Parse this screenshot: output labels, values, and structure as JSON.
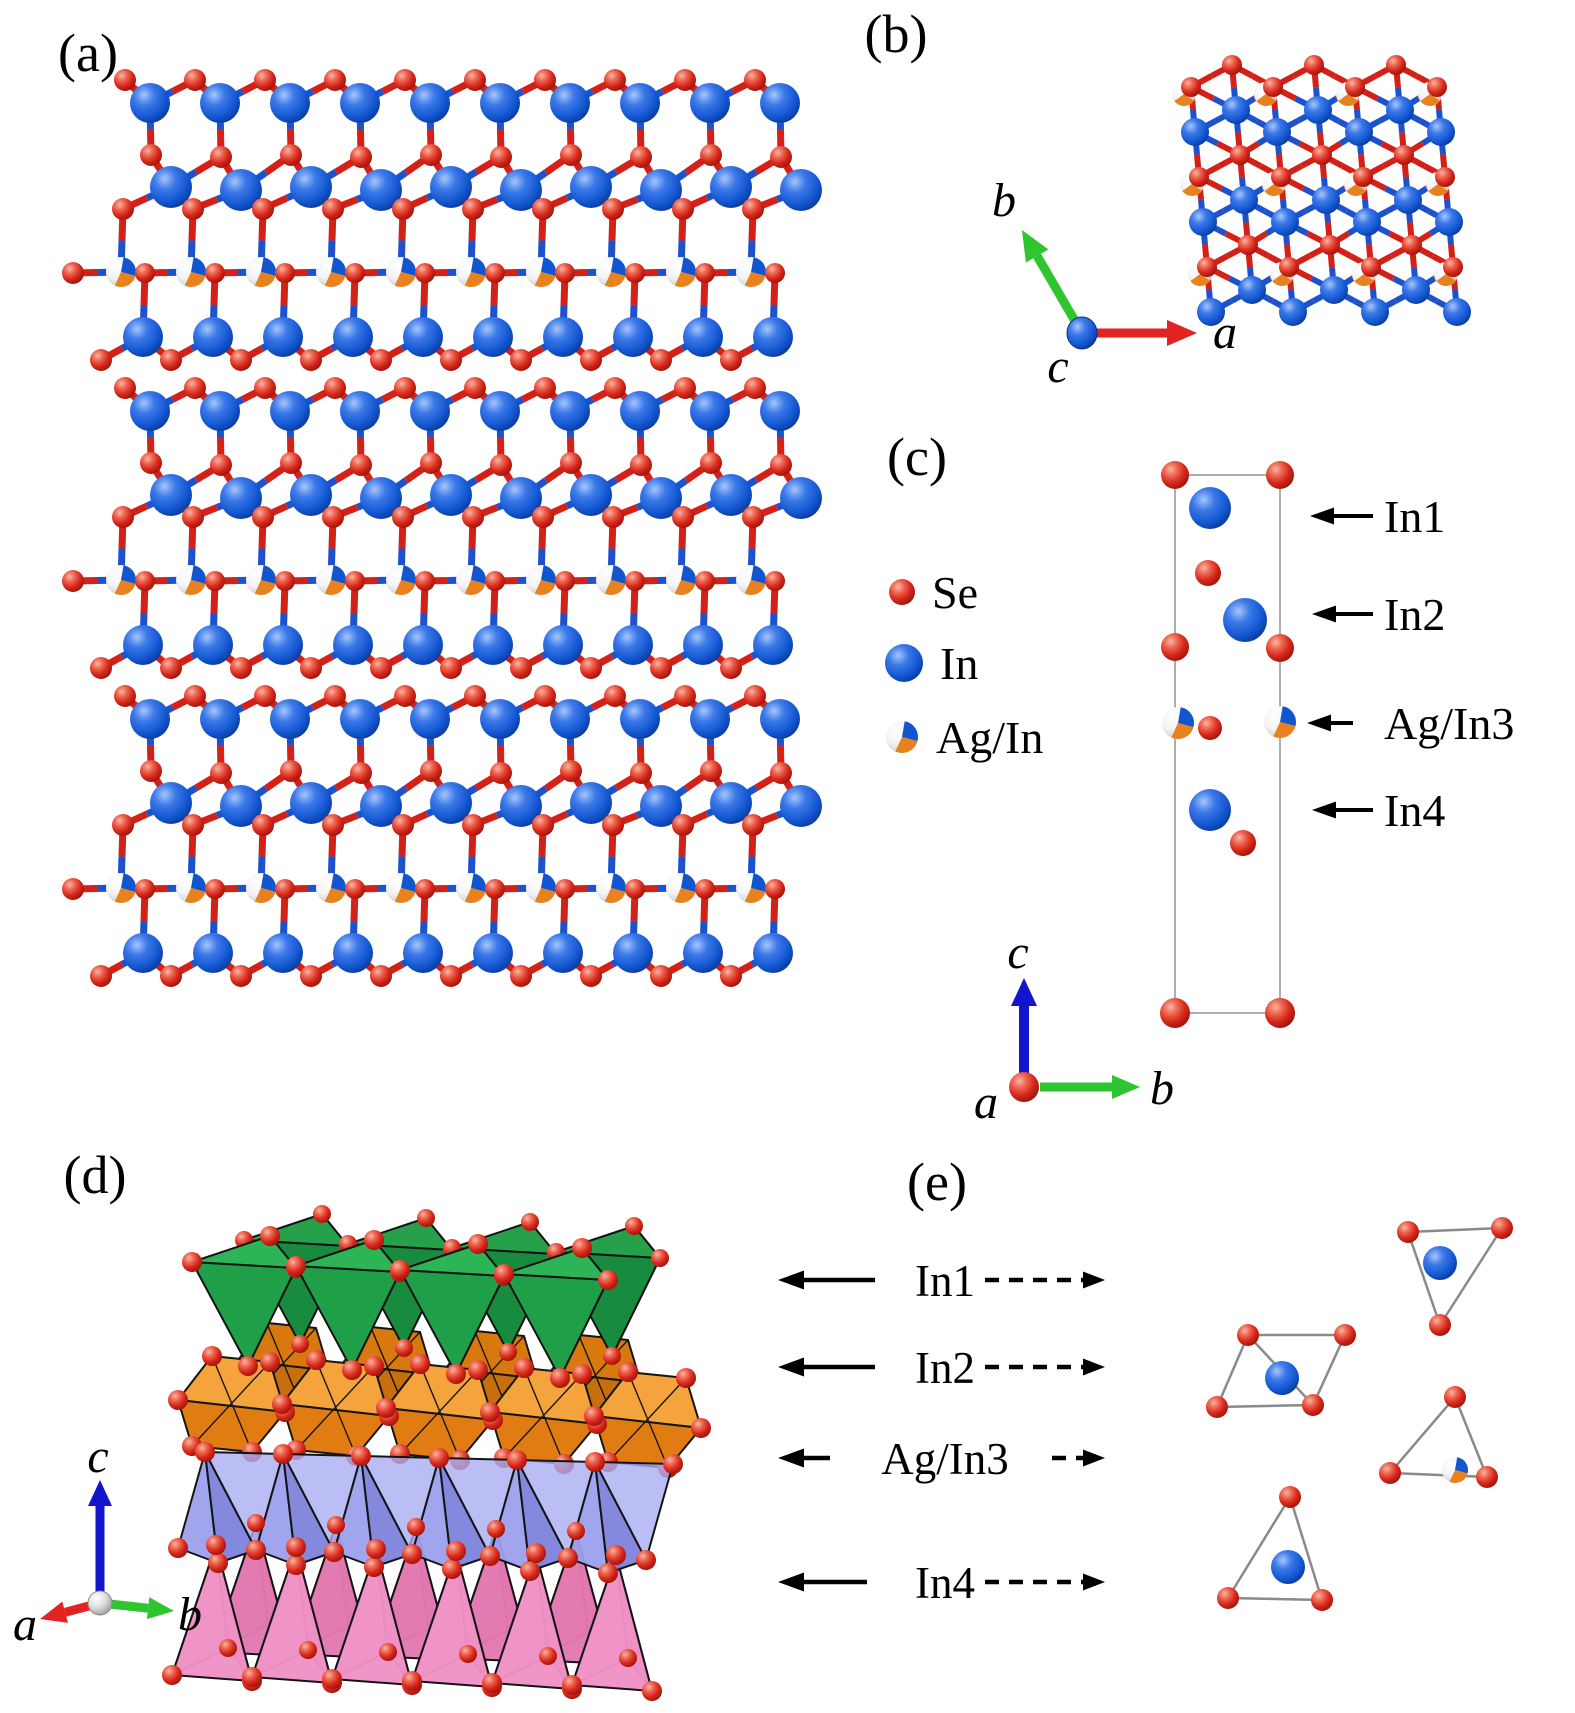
{
  "figure_type": "crystal-structure-figure",
  "panels": {
    "a": {
      "label": "(a)"
    },
    "b": {
      "label": "(b)",
      "axes": {
        "up_left": "b",
        "right": "a",
        "origin": "c"
      }
    },
    "c": {
      "label": "(c)",
      "legend": [
        {
          "name": "Se"
        },
        {
          "name": "In"
        },
        {
          "name": "Ag/In"
        }
      ],
      "sites": [
        {
          "name": "In1"
        },
        {
          "name": "In2"
        },
        {
          "name": "Ag/In3"
        },
        {
          "name": "In4"
        }
      ],
      "axes": {
        "up": "c",
        "right": "b",
        "origin": "a"
      }
    },
    "d": {
      "label": "(d)",
      "axes": {
        "up": "c",
        "right": "b",
        "left": "a"
      },
      "layers": [
        {
          "name": "In1",
          "color": "#1f9f48"
        },
        {
          "name": "In2",
          "color": "#ee8e1d"
        },
        {
          "name": "Ag/In3",
          "color": "#8a90e2"
        },
        {
          "name": "In4",
          "color": "#ef92c5"
        }
      ]
    },
    "e": {
      "label": "(e)",
      "rows": [
        {
          "name": "In1"
        },
        {
          "name": "In2"
        },
        {
          "name": "Ag/In3"
        },
        {
          "name": "In4"
        }
      ]
    }
  },
  "colors": {
    "se_red": "#d6281c",
    "in_blue": "#1256cf",
    "ag_white": "#f1f1f1",
    "ag_orange": "#e8821e",
    "bond_red": "#d42118",
    "bond_blue": "#1d52cc",
    "axis_red": "#e32222",
    "axis_green": "#2ec52e",
    "axis_blue": "#1414cc",
    "cell_line": "#999999",
    "cluster_edge": "#8a8a8a",
    "green_top": "#2db457",
    "green_front": "#1f9f48",
    "green_side": "#167f38",
    "orange_top": "#f5a33c",
    "orange_bottom": "#e07c12",
    "orange_back": "#d8790f",
    "purple_light": "#a9aef1",
    "purple_mid": "#9ba0ed",
    "purple_dark": "#7d83dc",
    "pink_light": "#f6b3d7",
    "pink_mid": "#ef92c5",
    "pink_dark": "#e27db3"
  }
}
